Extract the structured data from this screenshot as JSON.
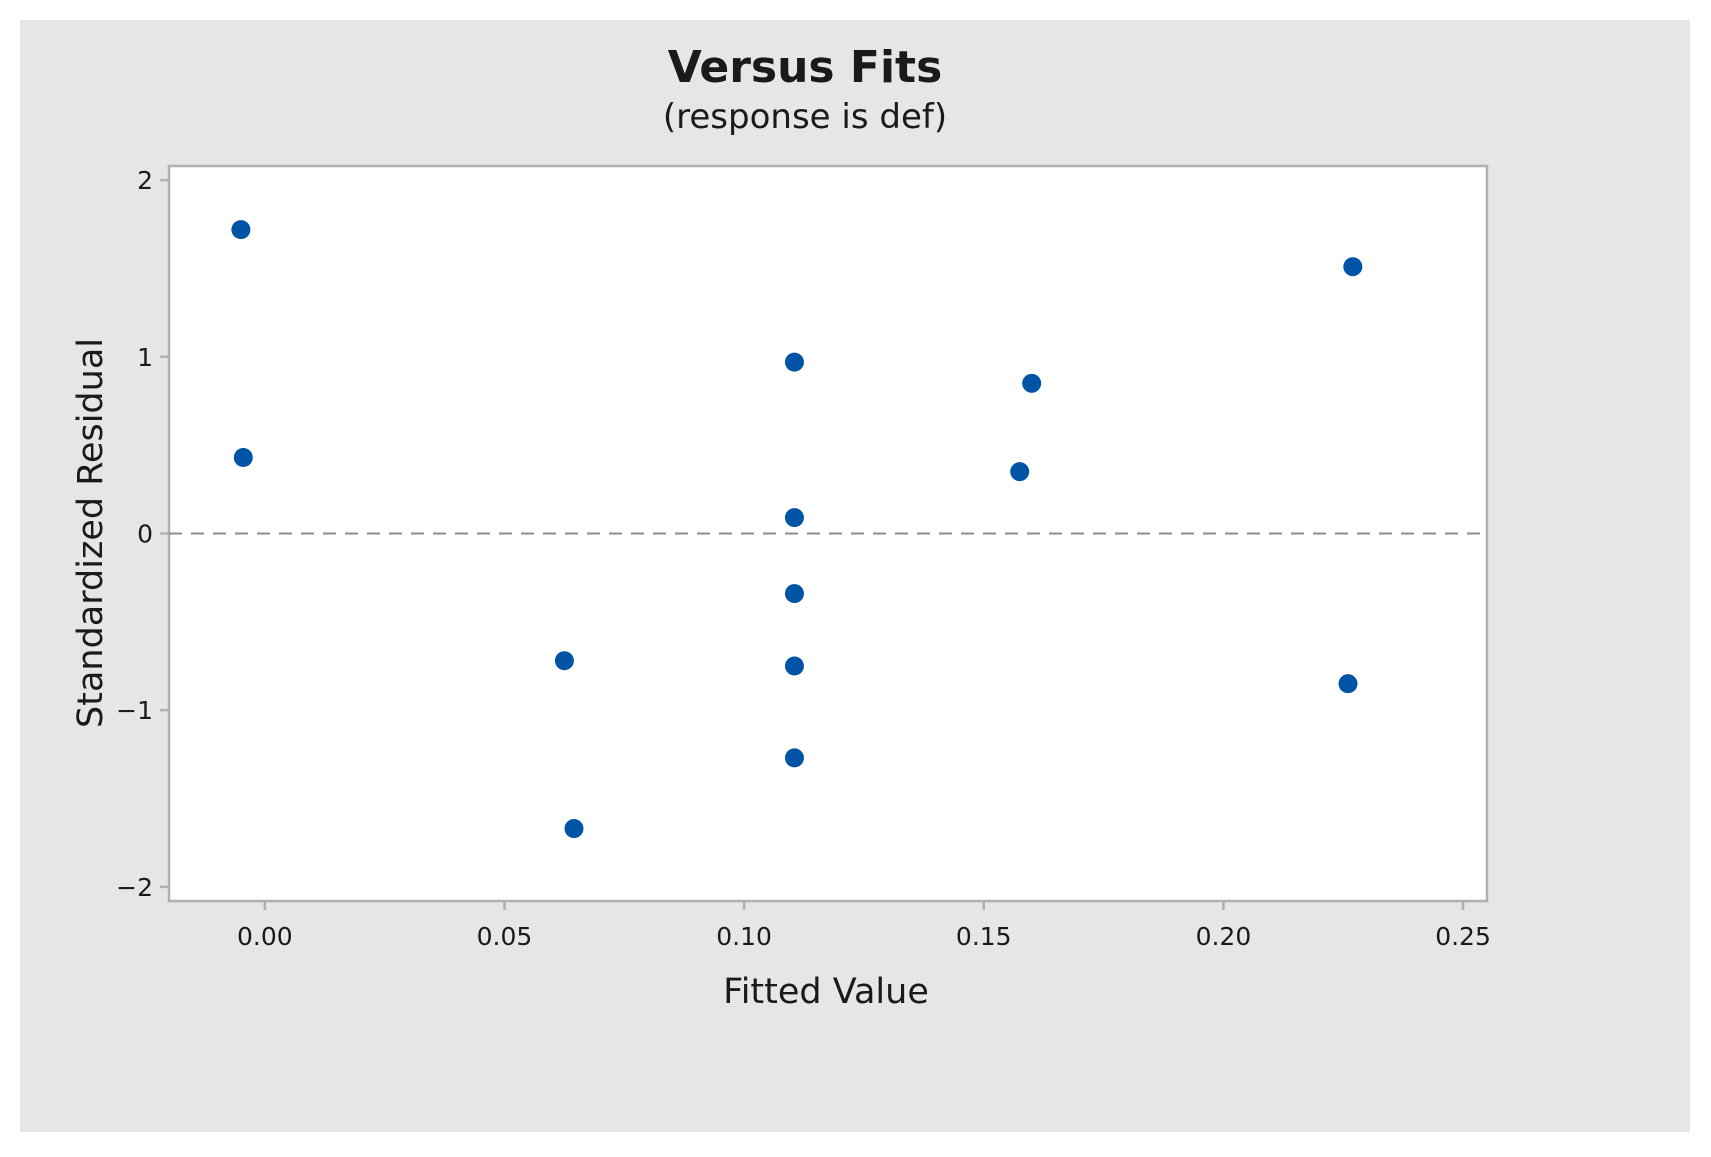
{
  "colors": {
    "frame_background": "#e6e6e6",
    "plot_background": "#ffffff",
    "axis": "#b0b0b0",
    "point": "#0054a6",
    "reference_line": "#8c8c8c"
  },
  "chart_data": {
    "type": "scatter",
    "title": "Versus Fits",
    "subtitle": "(response is def)",
    "xlabel": "Fitted Value",
    "ylabel": "Standardized Residual",
    "xlim": [
      -0.02,
      0.255
    ],
    "ylim": [
      -2.08,
      2.08
    ],
    "x_ticks": [
      0.0,
      0.05,
      0.1,
      0.15,
      0.2,
      0.25
    ],
    "x_tick_labels": [
      "0.00",
      "0.05",
      "0.10",
      "0.15",
      "0.20",
      "0.25"
    ],
    "y_ticks": [
      2,
      1,
      0,
      -1,
      -2
    ],
    "y_tick_labels": [
      "2",
      "1",
      "0",
      "−1",
      "−2"
    ],
    "reference_line": {
      "axis": "y",
      "value": 0,
      "style": "dashed"
    },
    "grid": false,
    "legend": "none",
    "points": [
      {
        "x": -0.005,
        "y": 1.72
      },
      {
        "x": -0.0045,
        "y": 0.43
      },
      {
        "x": 0.0625,
        "y": -0.72
      },
      {
        "x": 0.0645,
        "y": -1.67
      },
      {
        "x": 0.1105,
        "y": 0.97
      },
      {
        "x": 0.1105,
        "y": 0.09
      },
      {
        "x": 0.1105,
        "y": -0.34
      },
      {
        "x": 0.1105,
        "y": -0.75
      },
      {
        "x": 0.1105,
        "y": -1.27
      },
      {
        "x": 0.1575,
        "y": 0.35
      },
      {
        "x": 0.16,
        "y": 0.85
      },
      {
        "x": 0.226,
        "y": -0.85
      },
      {
        "x": 0.227,
        "y": 1.51
      }
    ]
  }
}
